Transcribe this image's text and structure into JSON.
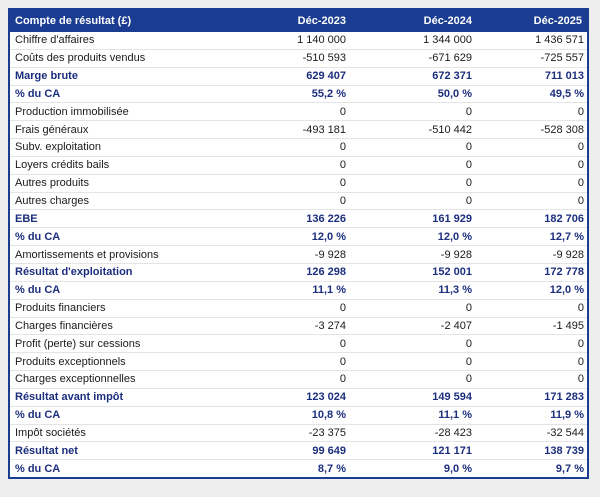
{
  "header": {
    "label": "Compte de résultat (£)",
    "columns": [
      "Déc-2023",
      "Déc-2024",
      "Déc-2025"
    ]
  },
  "colors": {
    "page_bg": "#ededed",
    "table_bg": "#ffffff",
    "header_bg": "#1b3d91",
    "header_text": "#ffffff",
    "border": "#1b3d91",
    "row_divider": "#e4e4e4",
    "body_text": "#1a1a1a",
    "bold_text": "#1c2e7e"
  },
  "rows": [
    {
      "label": "Chiffre d'affaires",
      "values": [
        "1 140 000",
        "1 344 000",
        "1 436 571"
      ],
      "bold": false
    },
    {
      "label": "Coûts des produits vendus",
      "values": [
        "-510 593",
        "-671 629",
        "-725 557"
      ],
      "bold": false
    },
    {
      "label": "Marge brute",
      "values": [
        "629 407",
        "672 371",
        "711 013"
      ],
      "bold": true
    },
    {
      "label": "% du CA",
      "values": [
        "55,2 %",
        "50,0 %",
        "49,5 %"
      ],
      "bold": true
    },
    {
      "label": "Production immobilisée",
      "values": [
        "0",
        "0",
        "0"
      ],
      "bold": false
    },
    {
      "label": "Frais généraux",
      "values": [
        "-493 181",
        "-510 442",
        "-528 308"
      ],
      "bold": false
    },
    {
      "label": "Subv. exploitation",
      "values": [
        "0",
        "0",
        "0"
      ],
      "bold": false
    },
    {
      "label": "Loyers crédits bails",
      "values": [
        "0",
        "0",
        "0"
      ],
      "bold": false
    },
    {
      "label": "Autres produits",
      "values": [
        "0",
        "0",
        "0"
      ],
      "bold": false
    },
    {
      "label": "Autres charges",
      "values": [
        "0",
        "0",
        "0"
      ],
      "bold": false
    },
    {
      "label": "EBE",
      "values": [
        "136 226",
        "161 929",
        "182 706"
      ],
      "bold": true
    },
    {
      "label": "% du CA",
      "values": [
        "12,0 %",
        "12,0 %",
        "12,7 %"
      ],
      "bold": true
    },
    {
      "label": "Amortissements et provisions",
      "values": [
        "-9 928",
        "-9 928",
        "-9 928"
      ],
      "bold": false
    },
    {
      "label": "Résultat d'exploitation",
      "values": [
        "126 298",
        "152 001",
        "172 778"
      ],
      "bold": true
    },
    {
      "label": "% du CA",
      "values": [
        "11,1 %",
        "11,3 %",
        "12,0 %"
      ],
      "bold": true
    },
    {
      "label": "Produits financiers",
      "values": [
        "0",
        "0",
        "0"
      ],
      "bold": false
    },
    {
      "label": "Charges financières",
      "values": [
        "-3 274",
        "-2 407",
        "-1 495"
      ],
      "bold": false
    },
    {
      "label": "Profit (perte) sur cessions",
      "values": [
        "0",
        "0",
        "0"
      ],
      "bold": false
    },
    {
      "label": "Produits exceptionnels",
      "values": [
        "0",
        "0",
        "0"
      ],
      "bold": false
    },
    {
      "label": "Charges exceptionnelles",
      "values": [
        "0",
        "0",
        "0"
      ],
      "bold": false
    },
    {
      "label": "Résultat avant impôt",
      "values": [
        "123 024",
        "149 594",
        "171 283"
      ],
      "bold": true
    },
    {
      "label": "% du CA",
      "values": [
        "10,8 %",
        "11,1 %",
        "11,9 %"
      ],
      "bold": true
    },
    {
      "label": "Impôt sociétés",
      "values": [
        "-23 375",
        "-28 423",
        "-32 544"
      ],
      "bold": false
    },
    {
      "label": "Résultat net",
      "values": [
        "99 649",
        "121 171",
        "138 739"
      ],
      "bold": true
    },
    {
      "label": "% du CA",
      "values": [
        "8,7 %",
        "9,0 %",
        "9,7 %"
      ],
      "bold": true
    }
  ]
}
